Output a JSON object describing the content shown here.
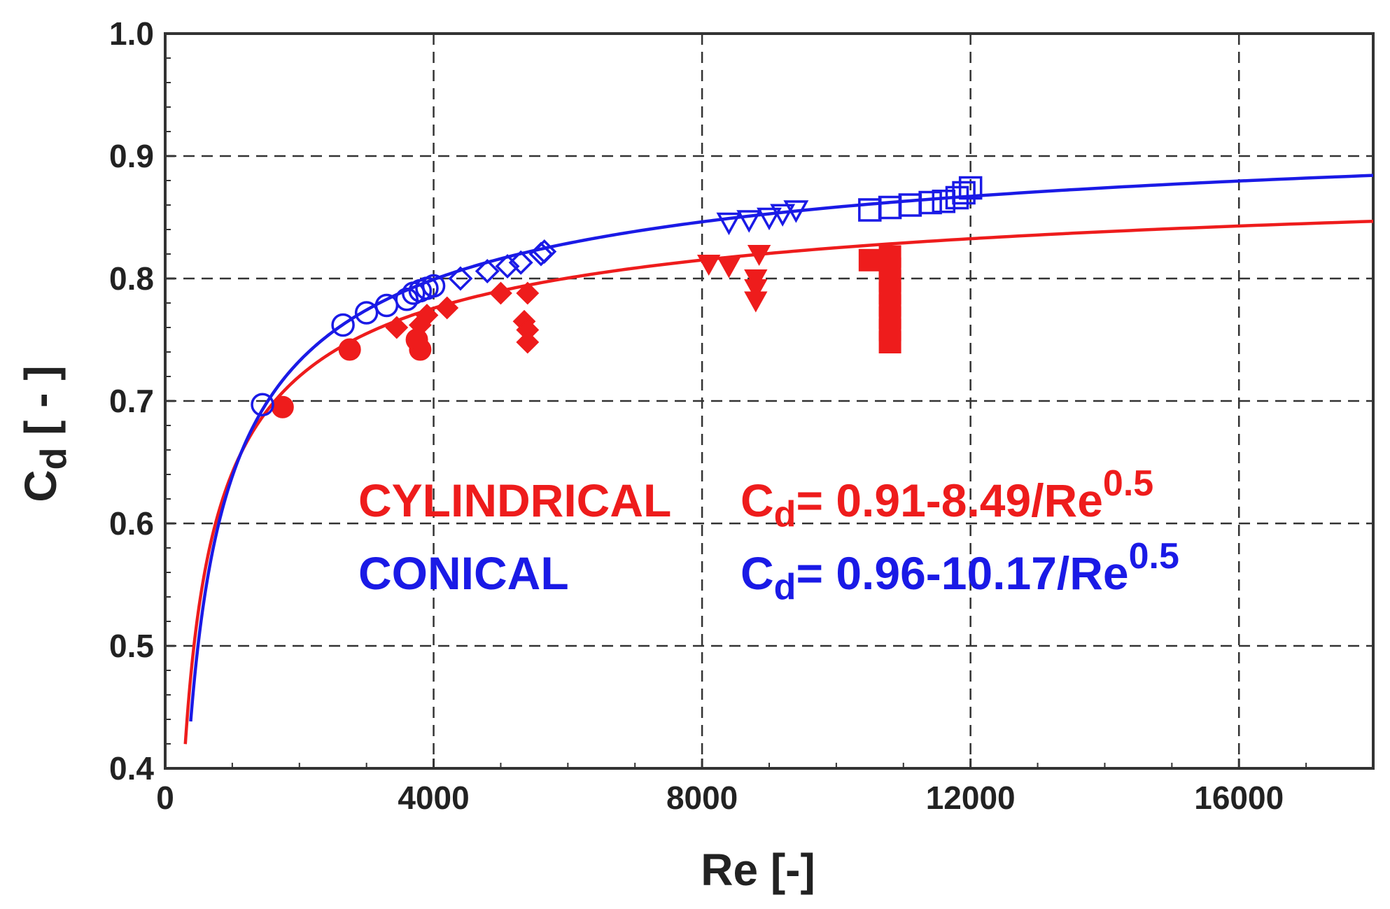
{
  "chart_data": {
    "type": "scatter",
    "xlabel": "Re [-]",
    "ylabel_main": "C",
    "ylabel_sub": "d",
    "ylabel_unit": " [ - ]",
    "xlim": [
      0,
      18000
    ],
    "ylim": [
      0.4,
      1.0
    ],
    "x_ticks": [
      0,
      4000,
      8000,
      12000,
      16000
    ],
    "x_tick_labels": [
      "0",
      "4000",
      "8000",
      "12000",
      "16000"
    ],
    "y_ticks": [
      0.4,
      0.5,
      0.6,
      0.7,
      0.8,
      0.9,
      1.0
    ],
    "y_tick_labels": [
      "0.4",
      "0.5",
      "0.6",
      "0.7",
      "0.8",
      "0.9",
      "1.0"
    ],
    "grid": true,
    "colors": {
      "cylindrical": "#ee1c1c",
      "conical": "#1a1ae6"
    },
    "annotations": {
      "cylindrical": {
        "name": "CYLINDRICAL",
        "eq_cd": "C",
        "eq_sub": "d",
        "eq_rest": "= 0.91-8.49/Re",
        "eq_exp": "0.5"
      },
      "conical": {
        "name": "CONICAL",
        "eq_cd": "C",
        "eq_sub": "d",
        "eq_rest": "= 0.96-10.17/Re",
        "eq_exp": "0.5"
      }
    },
    "fits": [
      {
        "series": "cylindrical",
        "a": 0.91,
        "b": 8.49,
        "x_range": [
          300,
          18000
        ]
      },
      {
        "series": "conical",
        "a": 0.96,
        "b": 10.17,
        "x_range": [
          380,
          18000
        ]
      }
    ],
    "series": [
      {
        "group": "cylindrical",
        "marker": "circle",
        "filled": true,
        "points": [
          [
            1750,
            0.695
          ],
          [
            2750,
            0.742
          ],
          [
            3800,
            0.742
          ],
          [
            3750,
            0.75
          ]
        ]
      },
      {
        "group": "cylindrical",
        "marker": "diamond",
        "filled": true,
        "points": [
          [
            3450,
            0.76
          ],
          [
            3900,
            0.77
          ],
          [
            4200,
            0.776
          ],
          [
            5000,
            0.788
          ],
          [
            5400,
            0.788
          ],
          [
            5350,
            0.765
          ],
          [
            5400,
            0.758
          ],
          [
            5400,
            0.748
          ],
          [
            3800,
            0.762
          ]
        ]
      },
      {
        "group": "cylindrical",
        "marker": "triangle-down",
        "filled": true,
        "points": [
          [
            8100,
            0.812
          ],
          [
            8400,
            0.81
          ],
          [
            8850,
            0.82
          ],
          [
            8800,
            0.8
          ],
          [
            8800,
            0.792
          ],
          [
            8800,
            0.782
          ]
        ]
      },
      {
        "group": "cylindrical",
        "marker": "square",
        "filled": true,
        "points": [
          [
            10500,
            0.815
          ],
          [
            10800,
            0.818
          ],
          [
            10800,
            0.808
          ],
          [
            10800,
            0.798
          ],
          [
            10800,
            0.788
          ],
          [
            10800,
            0.778
          ],
          [
            10800,
            0.768
          ],
          [
            10800,
            0.758
          ],
          [
            10800,
            0.748
          ]
        ]
      },
      {
        "group": "conical",
        "marker": "circle",
        "filled": false,
        "points": [
          [
            1450,
            0.697
          ],
          [
            2650,
            0.762
          ],
          [
            3000,
            0.772
          ],
          [
            3300,
            0.778
          ],
          [
            3600,
            0.783
          ],
          [
            3700,
            0.788
          ],
          [
            3800,
            0.79
          ],
          [
            3900,
            0.792
          ],
          [
            4000,
            0.794
          ]
        ]
      },
      {
        "group": "conical",
        "marker": "diamond",
        "filled": false,
        "points": [
          [
            4400,
            0.8
          ],
          [
            4800,
            0.806
          ],
          [
            5100,
            0.81
          ],
          [
            5300,
            0.813
          ],
          [
            5600,
            0.82
          ],
          [
            5650,
            0.822
          ]
        ]
      },
      {
        "group": "conical",
        "marker": "triangle-down",
        "filled": false,
        "points": [
          [
            8400,
            0.846
          ],
          [
            8700,
            0.848
          ],
          [
            9000,
            0.85
          ],
          [
            9200,
            0.853
          ],
          [
            9400,
            0.856
          ]
        ]
      },
      {
        "group": "conical",
        "marker": "square",
        "filled": false,
        "points": [
          [
            10500,
            0.856
          ],
          [
            10800,
            0.858
          ],
          [
            11100,
            0.86
          ],
          [
            11400,
            0.862
          ],
          [
            11600,
            0.863
          ],
          [
            11800,
            0.866
          ],
          [
            11900,
            0.87
          ],
          [
            12000,
            0.874
          ]
        ]
      }
    ]
  }
}
